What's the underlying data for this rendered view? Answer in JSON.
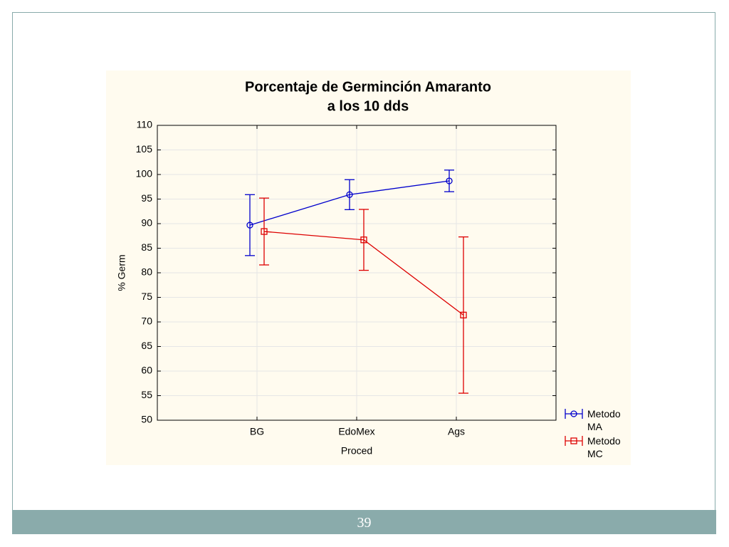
{
  "slide_number": "39",
  "chart_data": {
    "type": "line",
    "title": "Porcentaje de Germinción Amaranto",
    "subtitle": "a los 10 dds",
    "x_label": "Proced",
    "y_label": "% Germ",
    "categories": [
      "BG",
      "EdoMex",
      "Ags"
    ],
    "series": [
      {
        "name": "Metodo MA",
        "color": "#0000cc",
        "marker": "circle",
        "values": [
          89.7,
          95.9,
          98.7
        ],
        "errors": [
          6.2,
          3.05,
          2.2
        ]
      },
      {
        "name": "Metodo MC",
        "color": "#dd0000",
        "marker": "square",
        "values": [
          88.4,
          86.7,
          71.4
        ],
        "errors": [
          6.8,
          6.2,
          15.9
        ]
      }
    ],
    "ylim": [
      50,
      110
    ],
    "yticks": [
      50,
      55,
      60,
      65,
      70,
      75,
      80,
      85,
      90,
      95,
      100,
      105,
      110
    ],
    "grid": true
  }
}
